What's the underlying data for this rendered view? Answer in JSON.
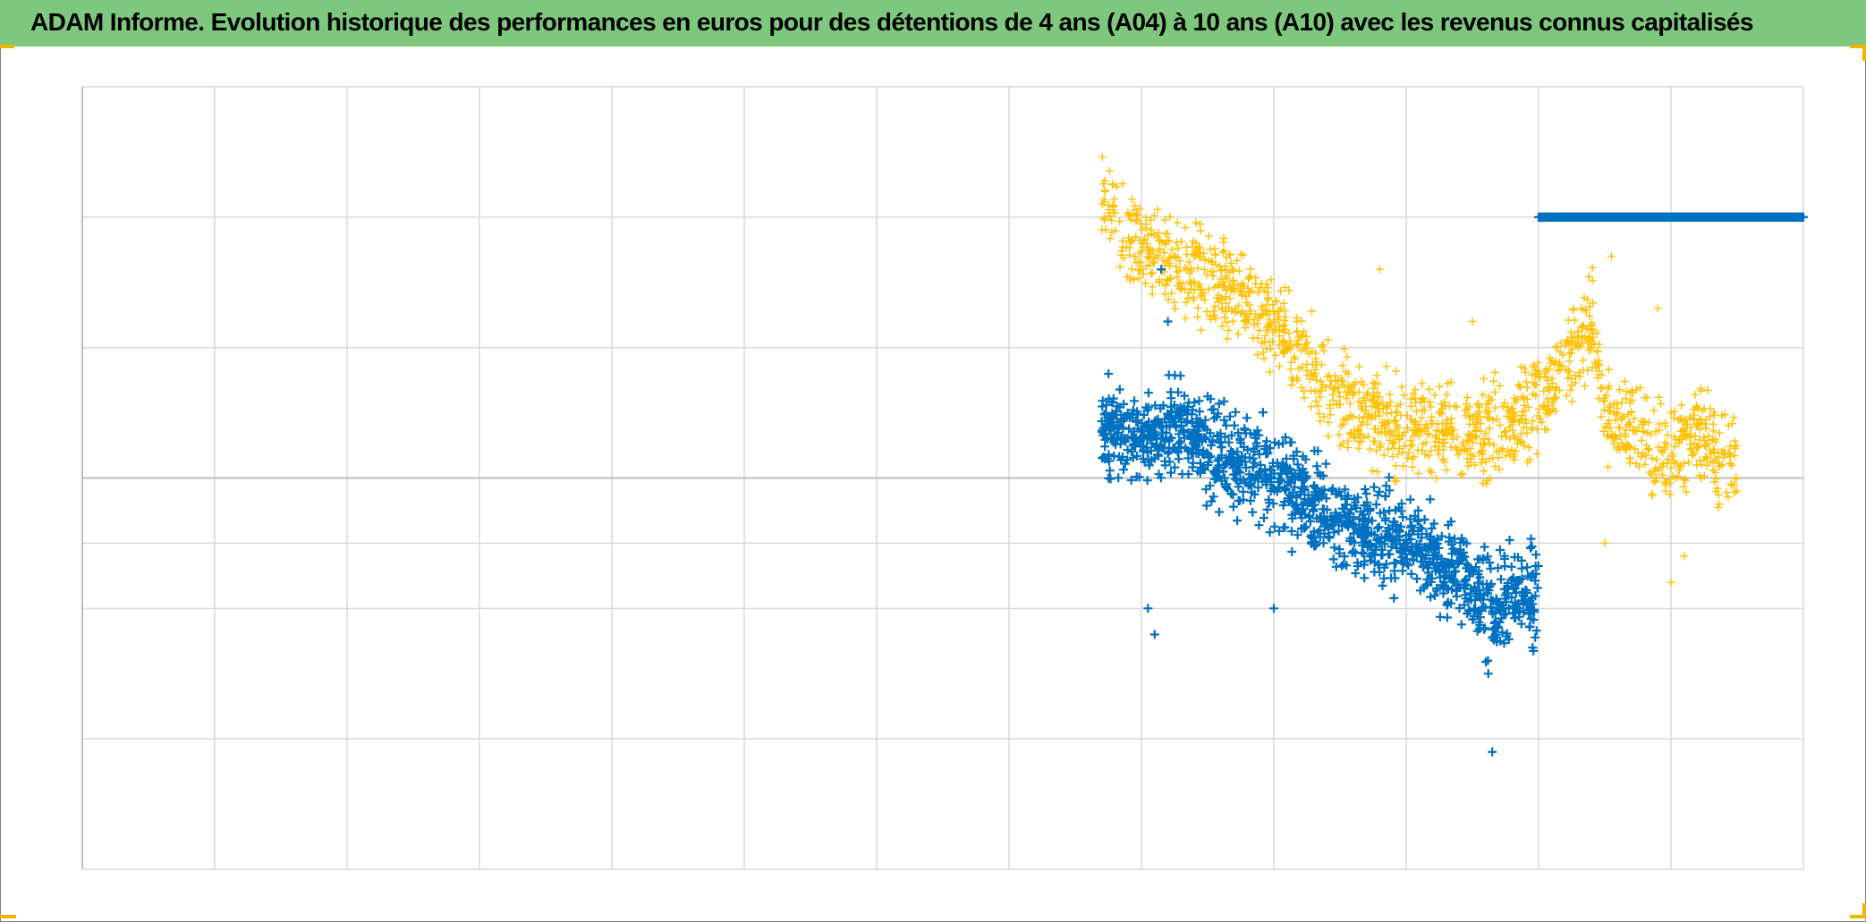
{
  "title": "ADAM Informe. Evolution historique des performances en euros pour des détentions de 4 ans (A04) à 10 ans (A10) avec les revenus connus capitalisés",
  "colors": {
    "title_bg": "#7ec87e",
    "grid": "#d9d9d9",
    "axis": "#bfbfbf",
    "series_a": "#0070c0",
    "series_b": "#ffc000",
    "handle": "#f2b400"
  },
  "chart_data": {
    "type": "scatter",
    "marker": "plus",
    "x_grid_lines": 13,
    "xlim": [
      0,
      13
    ],
    "ylim": [
      -0.3,
      0.3
    ],
    "y_gridlines": [
      -0.3,
      -0.2,
      -0.1,
      -0.05,
      0.0,
      0.1,
      0.2,
      0.3
    ],
    "grid": true,
    "legend": "none",
    "tick_labels_shown": false,
    "series": [
      {
        "color": "#0070c0",
        "x_range": [
          7.7,
          11.0
        ],
        "trend": [
          [
            7.7,
            0.035
          ],
          [
            8.0,
            0.03
          ],
          [
            8.3,
            0.04
          ],
          [
            8.6,
            0.02
          ],
          [
            8.9,
            0.005
          ],
          [
            9.2,
            -0.015
          ],
          [
            9.5,
            -0.035
          ],
          [
            9.8,
            -0.045
          ],
          [
            10.1,
            -0.055
          ],
          [
            10.4,
            -0.075
          ],
          [
            10.65,
            -0.1
          ],
          [
            10.8,
            -0.09
          ],
          [
            11.0,
            -0.085
          ]
        ],
        "spread": 0.025,
        "outliers": [
          [
            8.15,
            0.16
          ],
          [
            8.2,
            0.12
          ],
          [
            8.1,
            -0.12
          ],
          [
            8.05,
            -0.1
          ],
          [
            10.65,
            -0.21
          ],
          [
            10.62,
            -0.15
          ],
          [
            9.0,
            -0.1
          ]
        ],
        "count": 1300
      },
      {
        "color": "#ffc000",
        "x_range": [
          7.7,
          12.5
        ],
        "trend": [
          [
            7.7,
            0.22
          ],
          [
            7.9,
            0.18
          ],
          [
            8.2,
            0.17
          ],
          [
            8.6,
            0.15
          ],
          [
            9.0,
            0.12
          ],
          [
            9.3,
            0.08
          ],
          [
            9.6,
            0.05
          ],
          [
            10.0,
            0.04
          ],
          [
            10.4,
            0.03
          ],
          [
            10.8,
            0.04
          ],
          [
            11.1,
            0.07
          ],
          [
            11.4,
            0.12
          ],
          [
            11.5,
            0.05
          ],
          [
            11.9,
            0.02
          ],
          [
            12.2,
            0.035
          ],
          [
            12.5,
            0.01
          ]
        ],
        "spread": 0.025,
        "outliers": [
          [
            9.7,
            -0.02
          ],
          [
            11.55,
            0.17
          ],
          [
            11.5,
            -0.05
          ],
          [
            11.9,
            0.13
          ],
          [
            12.0,
            -0.08
          ],
          [
            12.1,
            -0.06
          ],
          [
            10.5,
            0.12
          ],
          [
            9.8,
            0.16
          ]
        ],
        "count": 1500
      },
      {
        "color": "#0070c0",
        "x_range": [
          11.0,
          13.0
        ],
        "constant_value": 0.2,
        "count": 450
      }
    ]
  }
}
